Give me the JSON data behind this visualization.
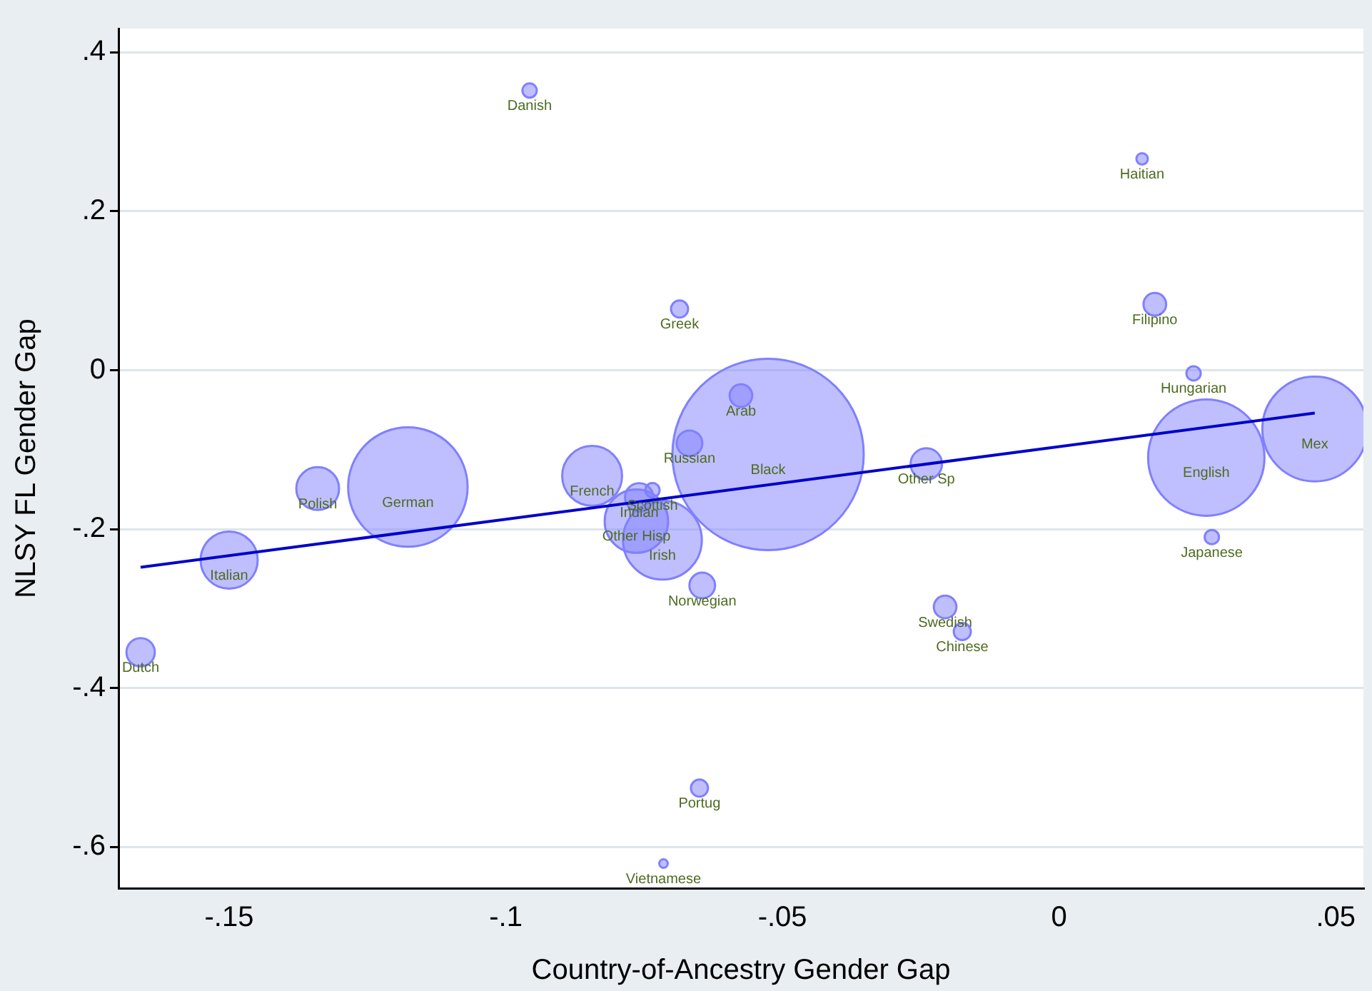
{
  "chart_data": {
    "type": "bubble",
    "xlabel": "Country-of-Ancestry Gender Gap",
    "ylabel": "NLSY FL Gender Gap",
    "xlim": [
      -0.17,
      0.055
    ],
    "xticks": [
      {
        "value": -0.15,
        "label": "-.15"
      },
      {
        "value": -0.1,
        "label": "-.1"
      },
      {
        "value": -0.05,
        "label": "-.05"
      },
      0,
      {
        "value": 0.05,
        "label": ".05"
      }
    ],
    "ylim": [
      -0.652,
      0.43
    ],
    "yticks": [
      {
        "value": 0.4,
        "label": ".4"
      },
      {
        "value": 0.2,
        "label": ".2"
      },
      0,
      {
        "value": -0.2,
        "label": "-.2"
      },
      {
        "value": -0.4,
        "label": "-.4"
      },
      {
        "value": -0.6,
        "label": "-.6"
      }
    ],
    "grid": "y",
    "legend": false,
    "series": [
      {
        "color": "#8080ff",
        "x": [
          -0.0957,
          0.015,
          -0.0686,
          0.0173,
          0.0243,
          -0.0575,
          -0.0668,
          -0.0526,
          -0.024,
          0.0266,
          0.0462,
          -0.134,
          -0.1177,
          -0.0844,
          -0.0735,
          -0.0759,
          -0.0764,
          -0.0717,
          -0.0645,
          -0.0206,
          -0.0175,
          0.0276,
          -0.15,
          -0.166,
          -0.065,
          -0.0715
        ],
        "values": [
          0.352,
          0.266,
          0.077,
          0.083,
          -0.004,
          -0.032,
          -0.092,
          -0.106,
          -0.118,
          -0.11,
          -0.074,
          -0.149,
          -0.147,
          -0.133,
          -0.151,
          -0.16,
          -0.19,
          -0.214,
          -0.271,
          -0.298,
          -0.329,
          -0.21,
          -0.239,
          -0.355,
          -0.526,
          -0.621
        ],
        "sizes": [
          0.0056,
          0.0036,
          0.008,
          0.014,
          0.0056,
          0.014,
          0.018,
          1,
          0.027,
          0.37,
          0.3,
          0.05,
          0.39,
          0.098,
          0.0056,
          0.022,
          0.11,
          0.17,
          0.018,
          0.014,
          0.008,
          0.0056,
          0.089,
          0.022,
          0.008,
          0.002
        ]
      },
      {
        "type": "line",
        "color": "#0000cc",
        "x": [
          -0.166,
          0.0462
        ],
        "values": [
          -0.248,
          -0.054
        ]
      }
    ],
    "annotations": [
      {
        "text": "Danish",
        "x": -0.0957,
        "y": 0.352
      },
      {
        "text": "Haitian",
        "x": 0.015,
        "y": 0.266
      },
      {
        "text": "Greek",
        "x": -0.0686,
        "y": 0.077
      },
      {
        "text": "Filipino",
        "x": 0.0173,
        "y": 0.083
      },
      {
        "text": "Hungarian",
        "x": 0.0243,
        "y": -0.004
      },
      {
        "text": "Arab",
        "x": -0.0575,
        "y": -0.032
      },
      {
        "text": "Russian",
        "x": -0.0668,
        "y": -0.092
      },
      {
        "text": "Black",
        "x": -0.0526,
        "y": -0.106
      },
      {
        "text": "Other Sp",
        "x": -0.024,
        "y": -0.118
      },
      {
        "text": "English",
        "x": 0.0266,
        "y": -0.11
      },
      {
        "text": "Mex",
        "x": 0.0462,
        "y": -0.074
      },
      {
        "text": "Polish",
        "x": -0.134,
        "y": -0.149
      },
      {
        "text": "German",
        "x": -0.1177,
        "y": -0.147
      },
      {
        "text": "French",
        "x": -0.0844,
        "y": -0.133
      },
      {
        "text": "Scottish",
        "x": -0.0735,
        "y": -0.151
      },
      {
        "text": "Indian",
        "x": -0.0759,
        "y": -0.16
      },
      {
        "text": "Other Hisp",
        "x": -0.0764,
        "y": -0.19
      },
      {
        "text": "Irish",
        "x": -0.0717,
        "y": -0.214
      },
      {
        "text": "Norwegian",
        "x": -0.0645,
        "y": -0.271
      },
      {
        "text": "Swedish",
        "x": -0.0206,
        "y": -0.298
      },
      {
        "text": "Chinese",
        "x": -0.0175,
        "y": -0.329
      },
      {
        "text": "Japanese",
        "x": 0.0276,
        "y": -0.21
      },
      {
        "text": "Italian",
        "x": -0.15,
        "y": -0.239
      },
      {
        "text": "Dutch",
        "x": -0.166,
        "y": -0.355
      },
      {
        "text": "Portug",
        "x": -0.065,
        "y": -0.526
      },
      {
        "text": "Vietnamese",
        "x": -0.0715,
        "y": -0.621
      }
    ]
  }
}
